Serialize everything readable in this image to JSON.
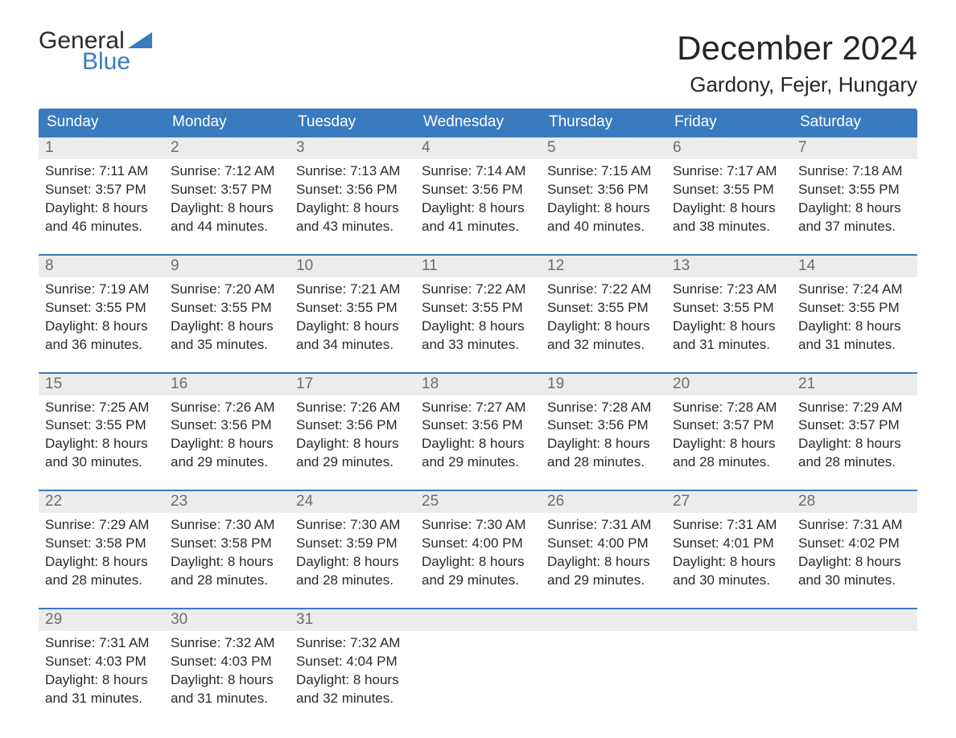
{
  "logo": {
    "line1": "General",
    "line2": "Blue",
    "accent_color": "#3a7bbf"
  },
  "title": "December 2024",
  "location": "Gardony, Fejer, Hungary",
  "colors": {
    "header_bg": "#3a7bbf",
    "header_text": "#ffffff",
    "daynum_bg": "#ececec",
    "daynum_text": "#6d6d6d",
    "week_top_border": "#3a7bbf",
    "body_text": "#2a2a2a",
    "page_bg": "#ffffff"
  },
  "day_headers": [
    "Sunday",
    "Monday",
    "Tuesday",
    "Wednesday",
    "Thursday",
    "Friday",
    "Saturday"
  ],
  "weeks": [
    [
      {
        "n": "1",
        "sr": "Sunrise: 7:11 AM",
        "ss": "Sunset: 3:57 PM",
        "d1": "Daylight: 8 hours",
        "d2": "and 46 minutes."
      },
      {
        "n": "2",
        "sr": "Sunrise: 7:12 AM",
        "ss": "Sunset: 3:57 PM",
        "d1": "Daylight: 8 hours",
        "d2": "and 44 minutes."
      },
      {
        "n": "3",
        "sr": "Sunrise: 7:13 AM",
        "ss": "Sunset: 3:56 PM",
        "d1": "Daylight: 8 hours",
        "d2": "and 43 minutes."
      },
      {
        "n": "4",
        "sr": "Sunrise: 7:14 AM",
        "ss": "Sunset: 3:56 PM",
        "d1": "Daylight: 8 hours",
        "d2": "and 41 minutes."
      },
      {
        "n": "5",
        "sr": "Sunrise: 7:15 AM",
        "ss": "Sunset: 3:56 PM",
        "d1": "Daylight: 8 hours",
        "d2": "and 40 minutes."
      },
      {
        "n": "6",
        "sr": "Sunrise: 7:17 AM",
        "ss": "Sunset: 3:55 PM",
        "d1": "Daylight: 8 hours",
        "d2": "and 38 minutes."
      },
      {
        "n": "7",
        "sr": "Sunrise: 7:18 AM",
        "ss": "Sunset: 3:55 PM",
        "d1": "Daylight: 8 hours",
        "d2": "and 37 minutes."
      }
    ],
    [
      {
        "n": "8",
        "sr": "Sunrise: 7:19 AM",
        "ss": "Sunset: 3:55 PM",
        "d1": "Daylight: 8 hours",
        "d2": "and 36 minutes."
      },
      {
        "n": "9",
        "sr": "Sunrise: 7:20 AM",
        "ss": "Sunset: 3:55 PM",
        "d1": "Daylight: 8 hours",
        "d2": "and 35 minutes."
      },
      {
        "n": "10",
        "sr": "Sunrise: 7:21 AM",
        "ss": "Sunset: 3:55 PM",
        "d1": "Daylight: 8 hours",
        "d2": "and 34 minutes."
      },
      {
        "n": "11",
        "sr": "Sunrise: 7:22 AM",
        "ss": "Sunset: 3:55 PM",
        "d1": "Daylight: 8 hours",
        "d2": "and 33 minutes."
      },
      {
        "n": "12",
        "sr": "Sunrise: 7:22 AM",
        "ss": "Sunset: 3:55 PM",
        "d1": "Daylight: 8 hours",
        "d2": "and 32 minutes."
      },
      {
        "n": "13",
        "sr": "Sunrise: 7:23 AM",
        "ss": "Sunset: 3:55 PM",
        "d1": "Daylight: 8 hours",
        "d2": "and 31 minutes."
      },
      {
        "n": "14",
        "sr": "Sunrise: 7:24 AM",
        "ss": "Sunset: 3:55 PM",
        "d1": "Daylight: 8 hours",
        "d2": "and 31 minutes."
      }
    ],
    [
      {
        "n": "15",
        "sr": "Sunrise: 7:25 AM",
        "ss": "Sunset: 3:55 PM",
        "d1": "Daylight: 8 hours",
        "d2": "and 30 minutes."
      },
      {
        "n": "16",
        "sr": "Sunrise: 7:26 AM",
        "ss": "Sunset: 3:56 PM",
        "d1": "Daylight: 8 hours",
        "d2": "and 29 minutes."
      },
      {
        "n": "17",
        "sr": "Sunrise: 7:26 AM",
        "ss": "Sunset: 3:56 PM",
        "d1": "Daylight: 8 hours",
        "d2": "and 29 minutes."
      },
      {
        "n": "18",
        "sr": "Sunrise: 7:27 AM",
        "ss": "Sunset: 3:56 PM",
        "d1": "Daylight: 8 hours",
        "d2": "and 29 minutes."
      },
      {
        "n": "19",
        "sr": "Sunrise: 7:28 AM",
        "ss": "Sunset: 3:56 PM",
        "d1": "Daylight: 8 hours",
        "d2": "and 28 minutes."
      },
      {
        "n": "20",
        "sr": "Sunrise: 7:28 AM",
        "ss": "Sunset: 3:57 PM",
        "d1": "Daylight: 8 hours",
        "d2": "and 28 minutes."
      },
      {
        "n": "21",
        "sr": "Sunrise: 7:29 AM",
        "ss": "Sunset: 3:57 PM",
        "d1": "Daylight: 8 hours",
        "d2": "and 28 minutes."
      }
    ],
    [
      {
        "n": "22",
        "sr": "Sunrise: 7:29 AM",
        "ss": "Sunset: 3:58 PM",
        "d1": "Daylight: 8 hours",
        "d2": "and 28 minutes."
      },
      {
        "n": "23",
        "sr": "Sunrise: 7:30 AM",
        "ss": "Sunset: 3:58 PM",
        "d1": "Daylight: 8 hours",
        "d2": "and 28 minutes."
      },
      {
        "n": "24",
        "sr": "Sunrise: 7:30 AM",
        "ss": "Sunset: 3:59 PM",
        "d1": "Daylight: 8 hours",
        "d2": "and 28 minutes."
      },
      {
        "n": "25",
        "sr": "Sunrise: 7:30 AM",
        "ss": "Sunset: 4:00 PM",
        "d1": "Daylight: 8 hours",
        "d2": "and 29 minutes."
      },
      {
        "n": "26",
        "sr": "Sunrise: 7:31 AM",
        "ss": "Sunset: 4:00 PM",
        "d1": "Daylight: 8 hours",
        "d2": "and 29 minutes."
      },
      {
        "n": "27",
        "sr": "Sunrise: 7:31 AM",
        "ss": "Sunset: 4:01 PM",
        "d1": "Daylight: 8 hours",
        "d2": "and 30 minutes."
      },
      {
        "n": "28",
        "sr": "Sunrise: 7:31 AM",
        "ss": "Sunset: 4:02 PM",
        "d1": "Daylight: 8 hours",
        "d2": "and 30 minutes."
      }
    ],
    [
      {
        "n": "29",
        "sr": "Sunrise: 7:31 AM",
        "ss": "Sunset: 4:03 PM",
        "d1": "Daylight: 8 hours",
        "d2": "and 31 minutes."
      },
      {
        "n": "30",
        "sr": "Sunrise: 7:32 AM",
        "ss": "Sunset: 4:03 PM",
        "d1": "Daylight: 8 hours",
        "d2": "and 31 minutes."
      },
      {
        "n": "31",
        "sr": "Sunrise: 7:32 AM",
        "ss": "Sunset: 4:04 PM",
        "d1": "Daylight: 8 hours",
        "d2": "and 32 minutes."
      },
      {
        "n": "",
        "sr": "",
        "ss": "",
        "d1": "",
        "d2": ""
      },
      {
        "n": "",
        "sr": "",
        "ss": "",
        "d1": "",
        "d2": ""
      },
      {
        "n": "",
        "sr": "",
        "ss": "",
        "d1": "",
        "d2": ""
      },
      {
        "n": "",
        "sr": "",
        "ss": "",
        "d1": "",
        "d2": ""
      }
    ]
  ]
}
